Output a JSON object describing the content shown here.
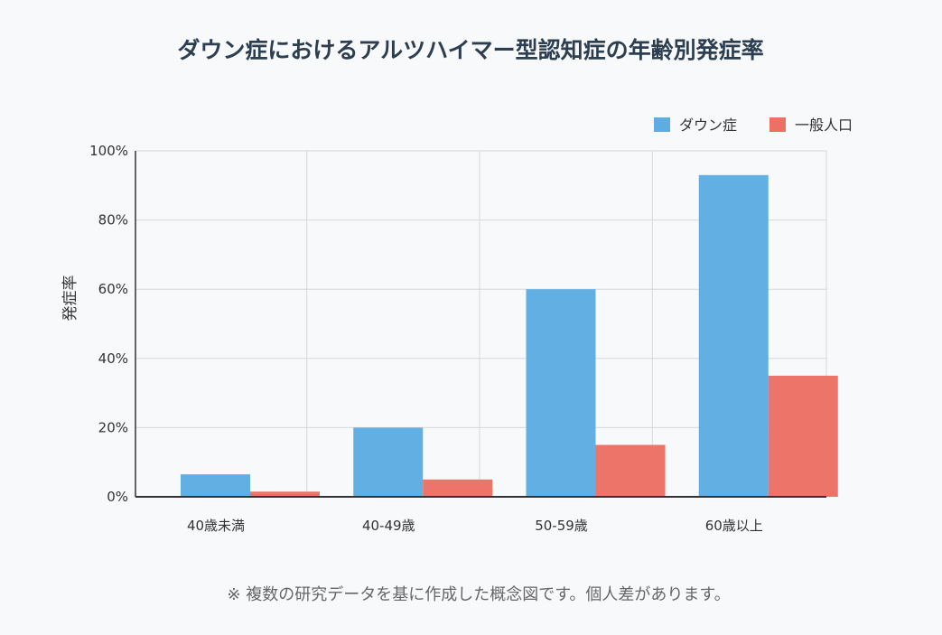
{
  "chart_data": {
    "type": "bar",
    "title": "ダウン症におけるアルツハイマー型認知症の年齢別発症率",
    "ylabel": "発症率",
    "xlabel": "",
    "categories": [
      "40歳未満",
      "40-49歳",
      "50-59歳",
      "60歳以上"
    ],
    "series": [
      {
        "name": "ダウン症",
        "values": [
          6.5,
          20,
          60,
          93
        ],
        "color": "#5dade2"
      },
      {
        "name": "一般人口",
        "values": [
          1.5,
          5,
          15,
          35
        ],
        "color": "#ec7063"
      }
    ],
    "ylim": [
      0,
      100
    ],
    "yticks": [
      0,
      20,
      40,
      60,
      80,
      100
    ],
    "ytick_labels": [
      "0%",
      "20%",
      "40%",
      "60%",
      "80%",
      "100%"
    ],
    "grid": true,
    "legend_position": "top-right",
    "footnote": "※ 複数の研究データを基に作成した概念図です。個人差があります。"
  }
}
